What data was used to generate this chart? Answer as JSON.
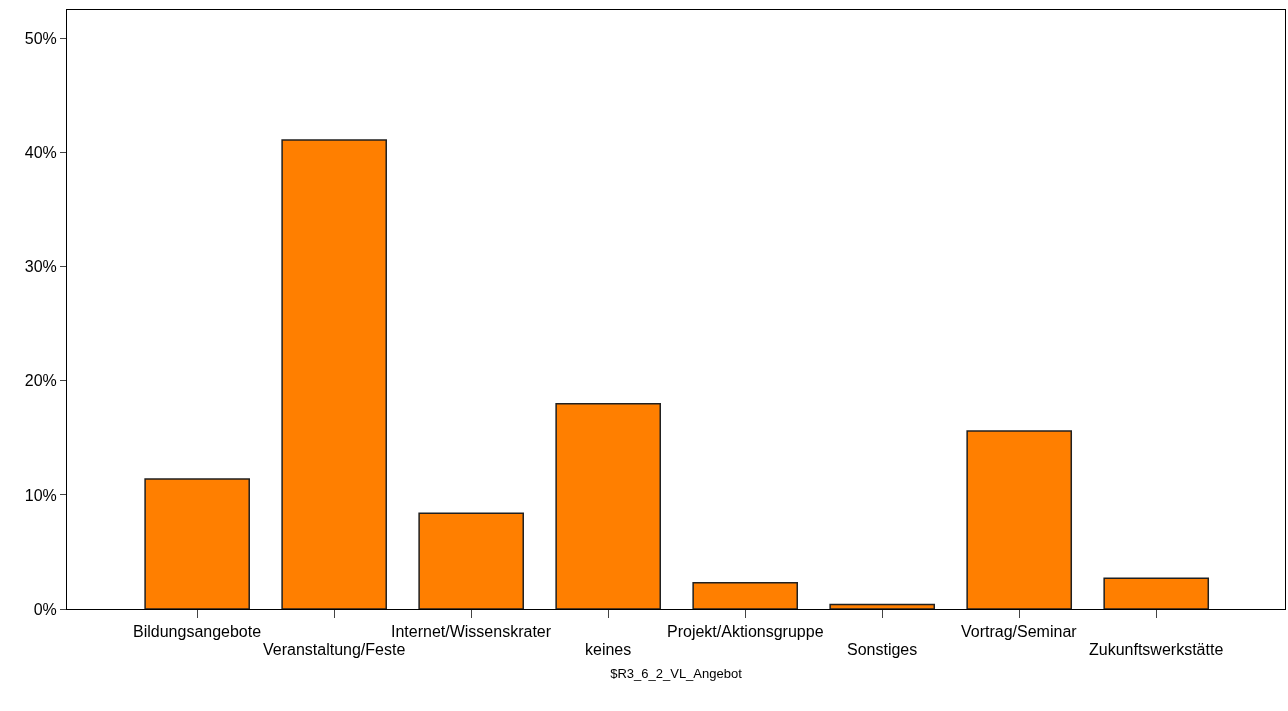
{
  "chart_data": {
    "type": "bar",
    "xlabel": "$R3_6_2_VL_Angebot",
    "categories": [
      "Bildungsangebote",
      "Veranstaltung/Feste",
      "Internet/Wissenskrater",
      "keines",
      "Projekt/Aktionsgruppe",
      "Sonstiges",
      "Vortrag/Seminar",
      "Zukunftswerkstätte"
    ],
    "values": [
      11.4,
      41.1,
      8.4,
      18.0,
      2.3,
      0.4,
      15.6,
      2.7
    ],
    "color": "#ff7f00",
    "ylim": [
      0,
      52.5
    ],
    "yticks": [
      {
        "value": 0,
        "label": "0%"
      },
      {
        "value": 10,
        "label": "10%"
      },
      {
        "value": 20,
        "label": "20%"
      },
      {
        "value": 30,
        "label": "30%"
      },
      {
        "value": 40,
        "label": "40%"
      },
      {
        "value": 50,
        "label": "50%"
      }
    ],
    "grid": false
  }
}
